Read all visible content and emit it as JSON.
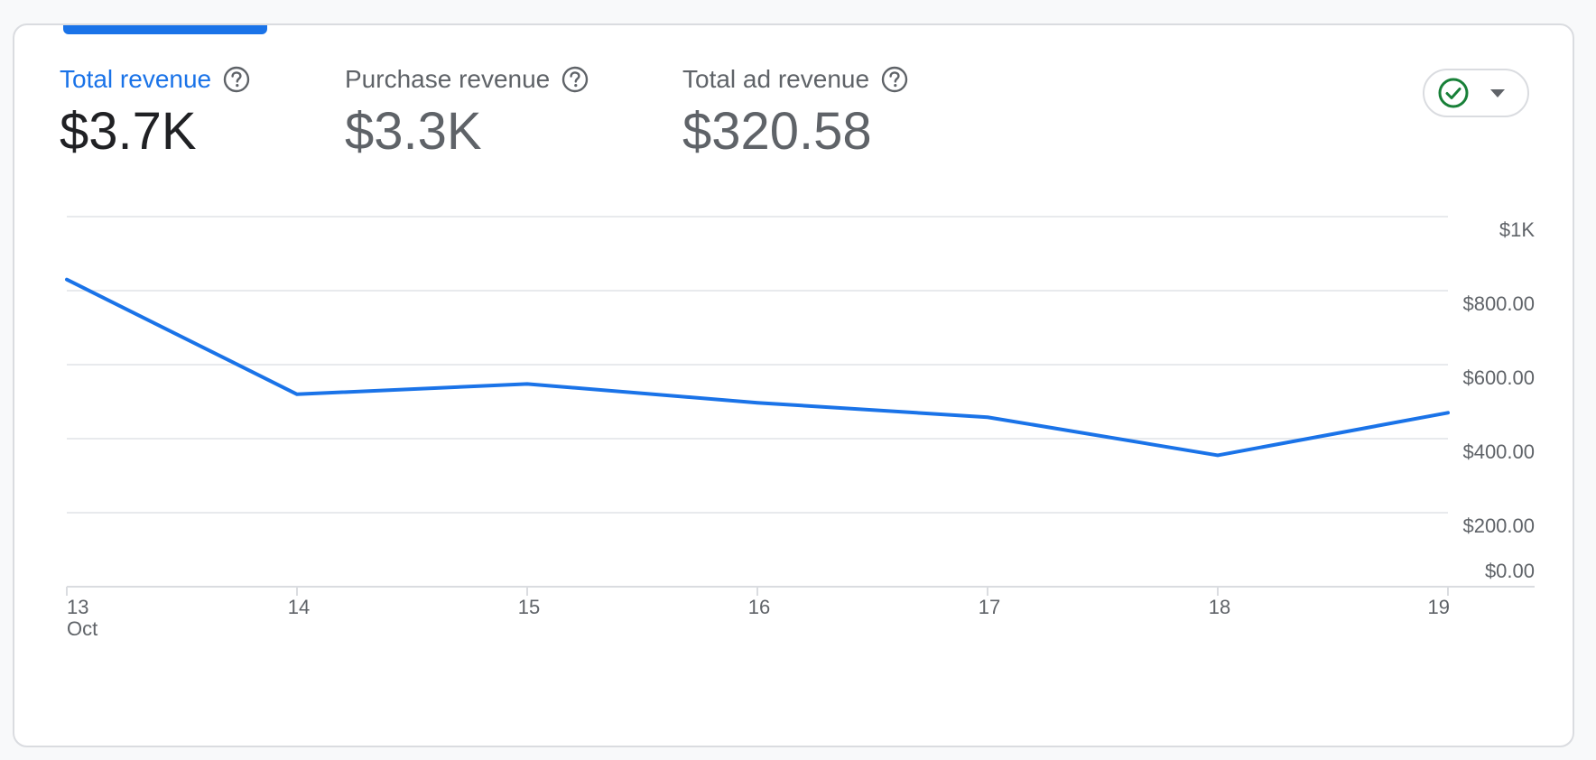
{
  "metrics": [
    {
      "label": "Total revenue",
      "value": "$3.7K",
      "active": true
    },
    {
      "label": "Purchase revenue",
      "value": "$3.3K",
      "active": false
    },
    {
      "label": "Total ad revenue",
      "value": "$320.58",
      "active": false
    }
  ],
  "status_chip": {
    "icon": "check-circle-icon",
    "caret": "caret-down-icon",
    "color": "#188038"
  },
  "colors": {
    "accent": "#1a73e8",
    "text": "#202124",
    "muted": "#5f6368",
    "grid": "#e8eaed"
  },
  "chart_data": {
    "type": "line",
    "x": [
      "13",
      "14",
      "15",
      "16",
      "17",
      "18",
      "19"
    ],
    "x_sublabel": {
      "13": "Oct"
    },
    "series": [
      {
        "values": [
          830,
          520,
          548,
          497,
          458,
          355,
          470
        ]
      }
    ],
    "y_ticks": [
      {
        "value": 0,
        "label": "$0.00"
      },
      {
        "value": 200,
        "label": "$200.00"
      },
      {
        "value": 400,
        "label": "$400.00"
      },
      {
        "value": 600,
        "label": "$600.00"
      },
      {
        "value": 800,
        "label": "$800.00"
      },
      {
        "value": 1000,
        "label": "$1K"
      }
    ],
    "ylim": [
      0,
      1000
    ],
    "grid": true,
    "y_axis_side": "right"
  }
}
